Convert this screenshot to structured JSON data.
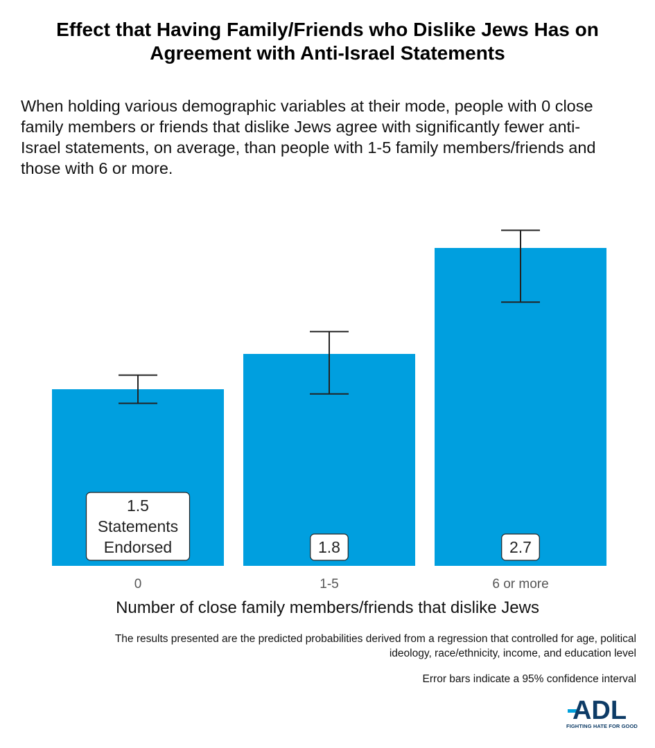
{
  "title": "Effect that Having Family/Friends who Dislike Jews Has on Agreement with Anti-Israel Statements",
  "subtitle": "When holding various demographic variables at their mode, people with 0 close family members or friends that dislike Jews agree with significantly fewer anti-Israel statements, on average, than people with 1-5 family members/friends and those with 6 or more.",
  "footnote": "The results presented are the predicted probabilities derived from a regression that controlled for age, political ideology, race/ethnicity, income, and education level",
  "error_note": "Error bars indicate a 95% confidence interval",
  "logo": {
    "text": "ADL",
    "tagline": "FIGHTING HATE FOR GOOD",
    "color": "#0d3b66",
    "accent": "#00a0dc"
  },
  "colors": {
    "bar": "#009fdf",
    "error_bar": "#222222",
    "tick_label": "#555555"
  },
  "chart_data": {
    "type": "bar",
    "categories": [
      "0",
      "1-5",
      "6 or more"
    ],
    "values": [
      1.5,
      1.8,
      2.7
    ],
    "value_labels": [
      [
        "1.5",
        "Statements",
        "Endorsed"
      ],
      [
        "1.8"
      ],
      [
        "2.7"
      ]
    ],
    "error_low": [
      1.38,
      1.46,
      2.24
    ],
    "error_high": [
      1.62,
      1.99,
      2.85
    ],
    "xlabel": "Number of close family members/friends that dislike Jews",
    "ylabel": "",
    "ylim": [
      0,
      3.0
    ],
    "grid": false,
    "legend": "none"
  }
}
